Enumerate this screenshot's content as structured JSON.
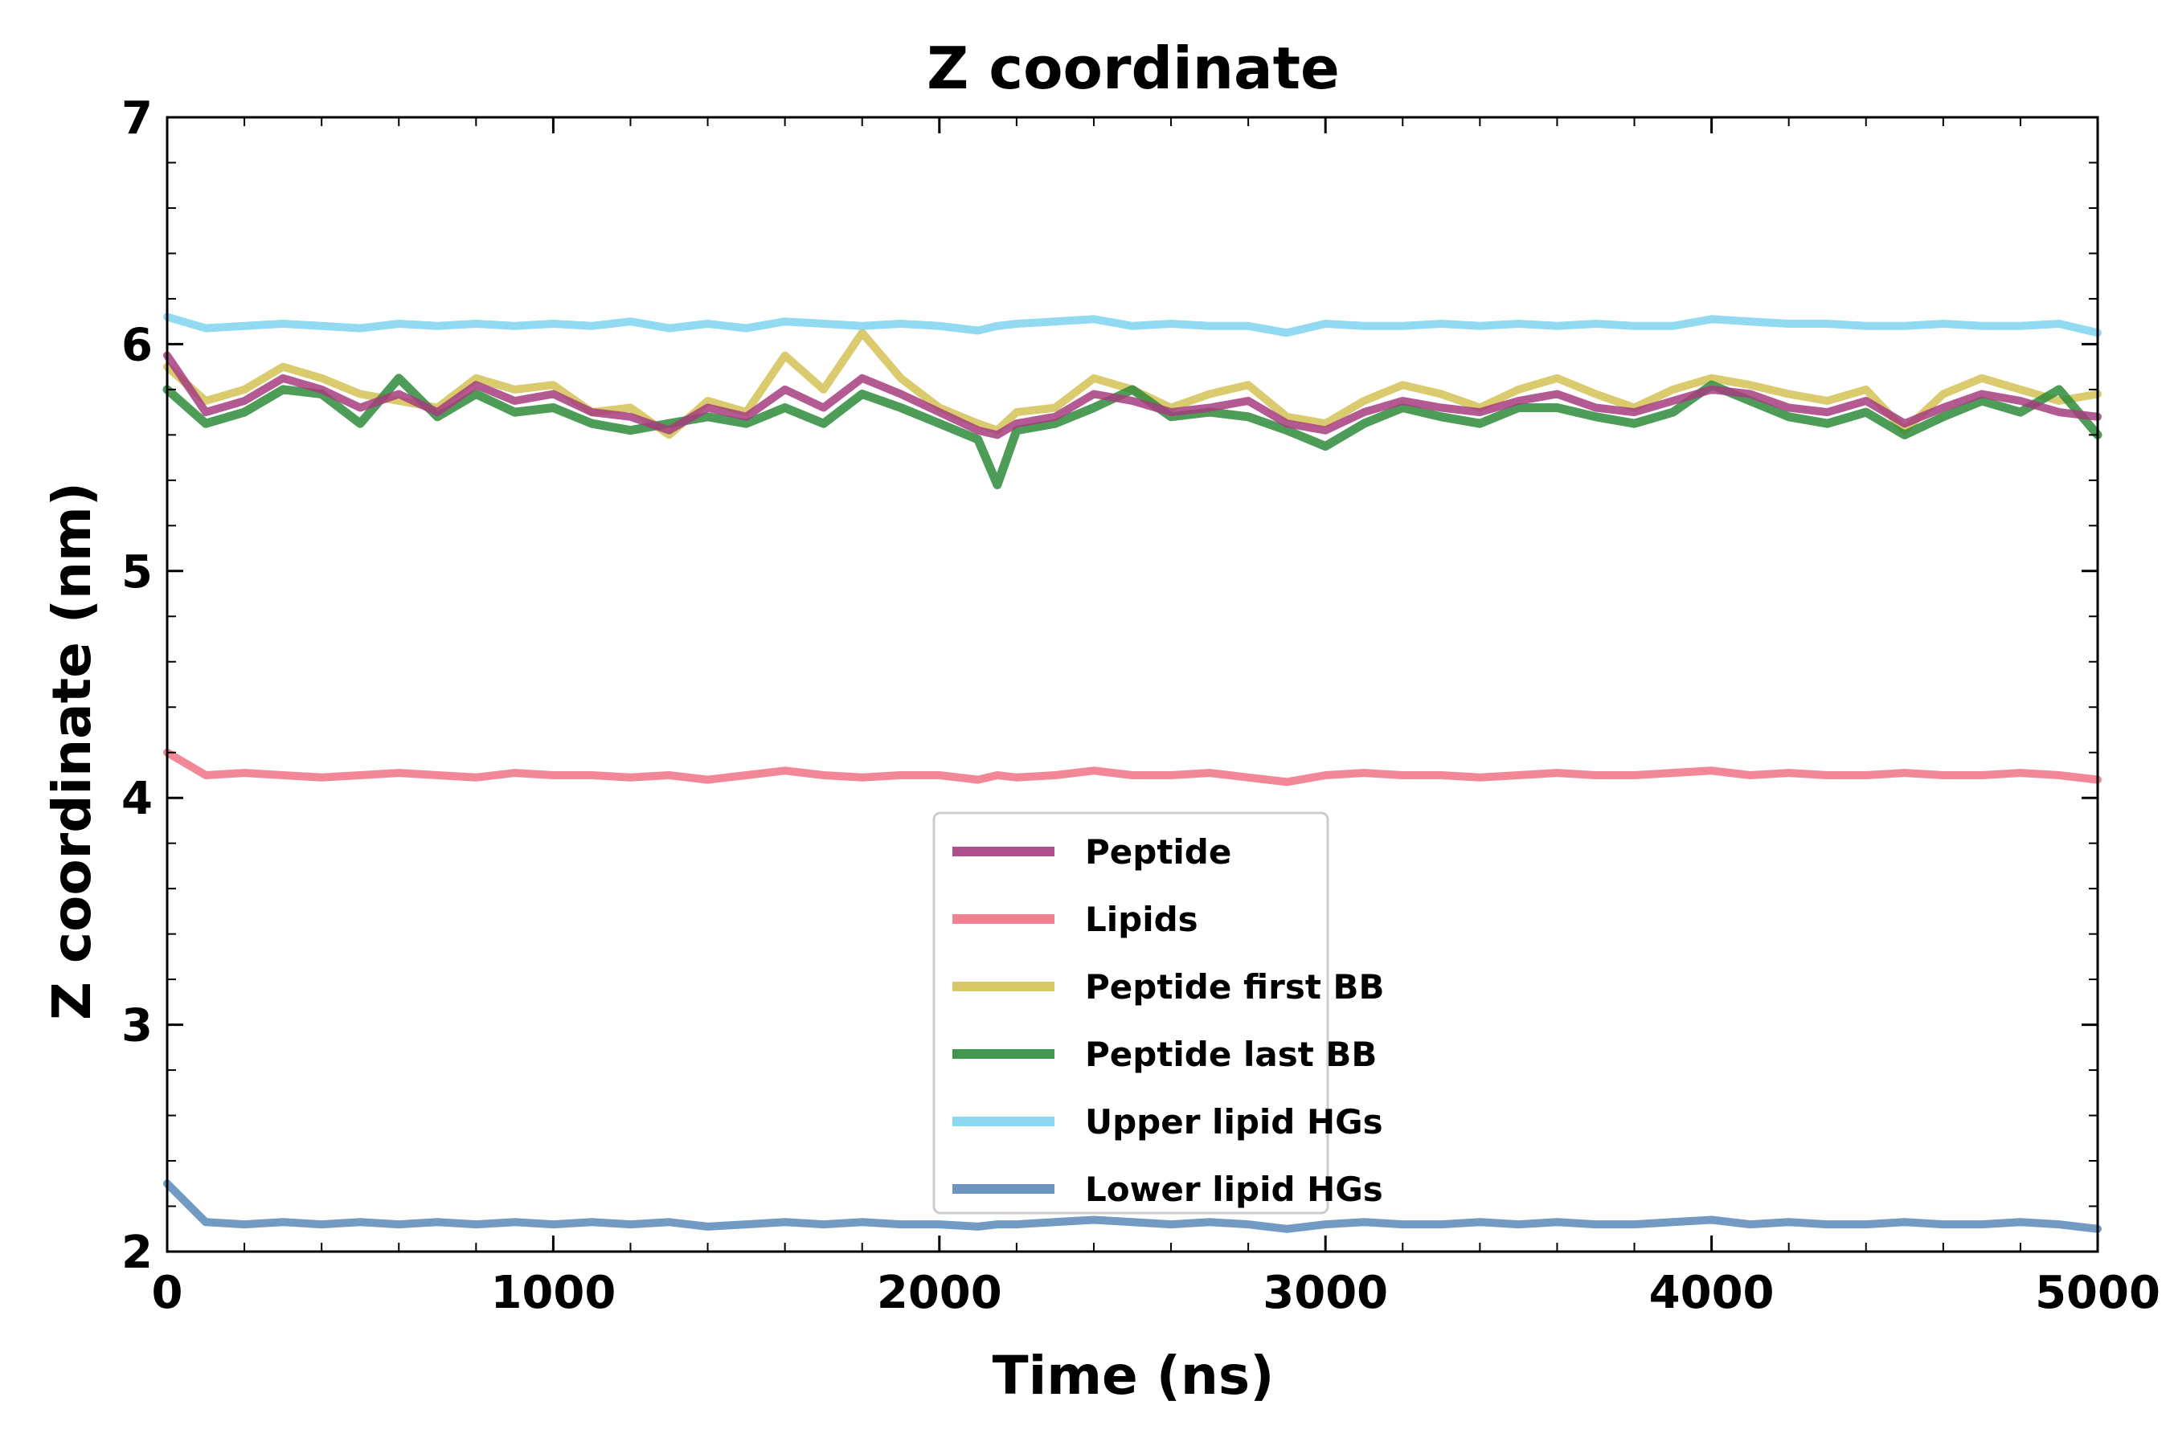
{
  "chart_data": {
    "type": "line",
    "title": "Z coordinate",
    "xlabel": "Time (ns)",
    "ylabel": "Z coordinate (nm)",
    "xlim": [
      0,
      5000
    ],
    "ylim": [
      2,
      7
    ],
    "xticks": [
      "0",
      "1000",
      "2000",
      "3000",
      "4000",
      "5000"
    ],
    "yticks": [
      "2",
      "3",
      "4",
      "5",
      "6",
      "7"
    ],
    "grid": false,
    "legend_position": "bottom-center",
    "x": [
      0,
      100,
      200,
      300,
      400,
      500,
      600,
      700,
      800,
      900,
      1000,
      1100,
      1200,
      1300,
      1400,
      1500,
      1600,
      1700,
      1800,
      1900,
      2000,
      2100,
      2150,
      2200,
      2300,
      2400,
      2500,
      2600,
      2700,
      2800,
      2900,
      3000,
      3100,
      3200,
      3300,
      3400,
      3500,
      3600,
      3700,
      3800,
      3900,
      4000,
      4100,
      4200,
      4300,
      4400,
      4500,
      4600,
      4700,
      4800,
      4900,
      5000
    ],
    "series": [
      {
        "name": "Peptide",
        "color": "#a63d7f",
        "values": [
          5.95,
          5.7,
          5.75,
          5.85,
          5.8,
          5.72,
          5.78,
          5.7,
          5.82,
          5.75,
          5.78,
          5.7,
          5.68,
          5.62,
          5.72,
          5.68,
          5.8,
          5.72,
          5.85,
          5.78,
          5.7,
          5.62,
          5.6,
          5.65,
          5.68,
          5.78,
          5.75,
          5.7,
          5.72,
          5.75,
          5.65,
          5.62,
          5.7,
          5.75,
          5.72,
          5.7,
          5.75,
          5.78,
          5.72,
          5.7,
          5.75,
          5.8,
          5.78,
          5.72,
          5.7,
          5.75,
          5.65,
          5.72,
          5.78,
          5.75,
          5.7,
          5.68
        ]
      },
      {
        "name": "Lipids",
        "color": "#ee7285",
        "values": [
          4.2,
          4.1,
          4.11,
          4.1,
          4.09,
          4.1,
          4.11,
          4.1,
          4.09,
          4.11,
          4.1,
          4.1,
          4.09,
          4.1,
          4.08,
          4.1,
          4.12,
          4.1,
          4.09,
          4.1,
          4.1,
          4.08,
          4.1,
          4.09,
          4.1,
          4.12,
          4.1,
          4.1,
          4.11,
          4.09,
          4.07,
          4.1,
          4.11,
          4.1,
          4.1,
          4.09,
          4.1,
          4.11,
          4.1,
          4.1,
          4.11,
          4.12,
          4.1,
          4.11,
          4.1,
          4.1,
          4.11,
          4.1,
          4.1,
          4.11,
          4.1,
          4.08
        ]
      },
      {
        "name": "Peptide first BB",
        "color": "#d4c255",
        "values": [
          5.9,
          5.75,
          5.8,
          5.9,
          5.85,
          5.78,
          5.75,
          5.72,
          5.85,
          5.8,
          5.82,
          5.7,
          5.72,
          5.6,
          5.75,
          5.7,
          5.95,
          5.8,
          6.05,
          5.85,
          5.72,
          5.65,
          5.62,
          5.7,
          5.72,
          5.85,
          5.8,
          5.72,
          5.78,
          5.82,
          5.68,
          5.65,
          5.75,
          5.82,
          5.78,
          5.72,
          5.8,
          5.85,
          5.78,
          5.72,
          5.8,
          5.85,
          5.82,
          5.78,
          5.75,
          5.8,
          5.62,
          5.78,
          5.85,
          5.8,
          5.75,
          5.78
        ]
      },
      {
        "name": "Peptide last BB",
        "color": "#2e8b3a",
        "values": [
          5.8,
          5.65,
          5.7,
          5.8,
          5.78,
          5.65,
          5.85,
          5.68,
          5.78,
          5.7,
          5.72,
          5.65,
          5.62,
          5.65,
          5.68,
          5.65,
          5.72,
          5.65,
          5.78,
          5.72,
          5.65,
          5.58,
          5.38,
          5.62,
          5.65,
          5.72,
          5.8,
          5.68,
          5.7,
          5.68,
          5.62,
          5.55,
          5.65,
          5.72,
          5.68,
          5.65,
          5.72,
          5.72,
          5.68,
          5.65,
          5.7,
          5.82,
          5.75,
          5.68,
          5.65,
          5.7,
          5.6,
          5.68,
          5.75,
          5.7,
          5.8,
          5.6
        ]
      },
      {
        "name": "Upper lipid HGs",
        "color": "#7fd3f0",
        "values": [
          6.12,
          6.07,
          6.08,
          6.09,
          6.08,
          6.07,
          6.09,
          6.08,
          6.09,
          6.08,
          6.09,
          6.08,
          6.1,
          6.07,
          6.09,
          6.07,
          6.1,
          6.09,
          6.08,
          6.09,
          6.08,
          6.06,
          6.08,
          6.09,
          6.1,
          6.11,
          6.08,
          6.09,
          6.08,
          6.08,
          6.05,
          6.09,
          6.08,
          6.08,
          6.09,
          6.08,
          6.09,
          6.08,
          6.09,
          6.08,
          6.08,
          6.11,
          6.1,
          6.09,
          6.09,
          6.08,
          6.08,
          6.09,
          6.08,
          6.08,
          6.09,
          6.05
        ]
      },
      {
        "name": "Lower lipid HGs",
        "color": "#5b88b7",
        "values": [
          2.3,
          2.13,
          2.12,
          2.13,
          2.12,
          2.13,
          2.12,
          2.13,
          2.12,
          2.13,
          2.12,
          2.13,
          2.12,
          2.13,
          2.11,
          2.12,
          2.13,
          2.12,
          2.13,
          2.12,
          2.12,
          2.11,
          2.12,
          2.12,
          2.13,
          2.14,
          2.13,
          2.12,
          2.13,
          2.12,
          2.1,
          2.12,
          2.13,
          2.12,
          2.12,
          2.13,
          2.12,
          2.13,
          2.12,
          2.12,
          2.13,
          2.14,
          2.12,
          2.13,
          2.12,
          2.12,
          2.13,
          2.12,
          2.12,
          2.13,
          2.12,
          2.1
        ]
      }
    ]
  }
}
